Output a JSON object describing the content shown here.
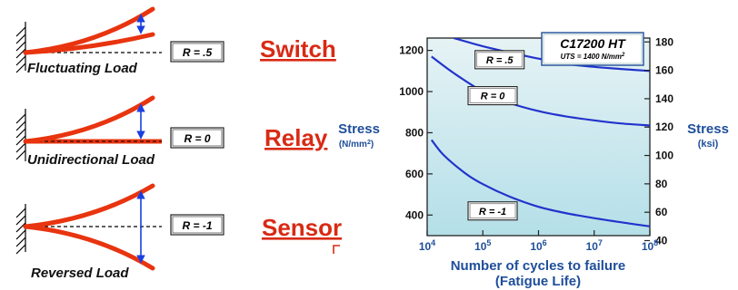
{
  "load_cases": [
    {
      "label": "Fluctuating Load",
      "r": "R = .5"
    },
    {
      "label": "Unidirectional Load",
      "r": "R = 0"
    },
    {
      "label": "Reversed Load",
      "r": "R = -1"
    }
  ],
  "applications": [
    "Switch",
    "Relay",
    "Sensor"
  ],
  "colors": {
    "beam": "#e8340f",
    "arrow": "#1a3fe0",
    "app_text": "#d82a14",
    "axis_text": "#1f4e9a",
    "curve": "#2233cc",
    "plot_bg_top": "#e6f3f5",
    "plot_bg_bottom": "#b4dfe8"
  },
  "chart_data": {
    "type": "line",
    "title": "C17200 HT",
    "subtitle": "UTS = 1400 N/mm",
    "subtitle_sup": "2",
    "ylabel": "Stress",
    "ylabel_unit": "(N/mm",
    "ylabel_unit_sup": "2",
    "ylabel_unit_end": ")",
    "y2label": "Stress",
    "y2label_unit": "(ksi)",
    "xlabel": "Number of cycles to failure",
    "xlabel2": "(Fatigue Life)",
    "x_scale": "log",
    "xlim": [
      10000,
      100000000
    ],
    "ylim": [
      300,
      1260
    ],
    "y_ticks": [
      "1200",
      "1000",
      "800",
      "600",
      "400"
    ],
    "y_tick_values": [
      1200,
      1000,
      800,
      600,
      400
    ],
    "y2_ticks": [
      "180",
      "160",
      "140",
      "120",
      "100",
      "80",
      "60",
      "40"
    ],
    "y2_tick_values": [
      180,
      160,
      140,
      120,
      100,
      80,
      60,
      40
    ],
    "x_ticks": [
      {
        "base": "10",
        "exp": "4",
        "value": 10000
      },
      {
        "base": "10",
        "exp": "5",
        "value": 100000
      },
      {
        "base": "10",
        "exp": "6",
        "value": 1000000
      },
      {
        "base": "10",
        "exp": "7",
        "value": 10000000
      },
      {
        "base": "10",
        "exp": "8",
        "value": 100000000
      }
    ],
    "series": [
      {
        "name": "R = .5",
        "x": [
          30000,
          100000,
          300000,
          1000000,
          3000000,
          10000000,
          30000000,
          100000000
        ],
        "y": [
          1260,
          1220,
          1190,
          1160,
          1135,
          1120,
          1110,
          1100
        ]
      },
      {
        "name": "R = 0",
        "x": [
          12000,
          30000,
          100000,
          300000,
          1000000,
          3000000,
          10000000,
          30000000,
          100000000
        ],
        "y": [
          1170,
          1090,
          1000,
          945,
          905,
          880,
          860,
          845,
          835
        ]
      },
      {
        "name": "R = -1",
        "x": [
          12000,
          20000,
          50000,
          100000,
          300000,
          1000000,
          3000000,
          10000000,
          30000000,
          100000000
        ],
        "y": [
          765,
          690,
          600,
          550,
          490,
          440,
          410,
          385,
          365,
          345
        ]
      }
    ],
    "grid": false,
    "legend": "labels on curves"
  }
}
